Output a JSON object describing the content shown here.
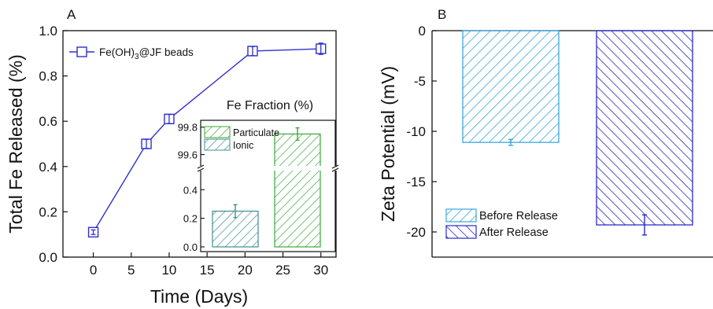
{
  "panels": {
    "a": {
      "letter": "A"
    },
    "b": {
      "letter": "B"
    }
  },
  "colors": {
    "line_blue": "#2f2fd0",
    "inset_teal": "#3f8f8f",
    "inset_green": "#3aa83a",
    "before_cyan": "#39a6dc",
    "after_blue": "#2a2ac8",
    "ink": "#111111"
  },
  "chart_data": [
    {
      "type": "line",
      "panel": "A",
      "xlabel": "Time (Days)",
      "ylabel": "Total Fe Released (%)",
      "xlim": [
        -4,
        32
      ],
      "ylim": [
        0,
        1.0
      ],
      "xticks": [
        "0",
        "5",
        "10",
        "15",
        "20",
        "25",
        "30"
      ],
      "yticks": [
        "0.0",
        "0.2",
        "0.4",
        "0.6",
        "0.8",
        "1.0"
      ],
      "series": [
        {
          "name_parts": [
            "Fe(OH)",
            "3",
            "@JF beads"
          ],
          "marker": "open-square",
          "color": "#2f2fd0",
          "x": [
            0,
            7,
            10,
            21,
            30
          ],
          "y": [
            0.11,
            0.5,
            0.61,
            0.91,
            0.92
          ],
          "yerr": [
            0.01,
            0.02,
            0.02,
            0.02,
            0.025
          ]
        }
      ],
      "legend": "top-left",
      "inset": {
        "type": "bar",
        "title": "Fe Fraction (%)",
        "yaxis_break": true,
        "lower_yticks": [
          "0.0",
          "0.2",
          "0.4"
        ],
        "upper_yticks": [
          "99.6",
          "99.8"
        ],
        "lower_ylim": [
          0,
          0.55
        ],
        "upper_ylim": [
          99.5,
          99.85
        ],
        "bars": [
          {
            "name": "Ionic",
            "value": 0.25,
            "err": 0.045,
            "color": "#3f8f8f"
          },
          {
            "name": "Particulate",
            "value": 99.75,
            "err": 0.045,
            "color": "#3aa83a"
          }
        ],
        "legend": "top-left"
      }
    },
    {
      "type": "bar",
      "panel": "B",
      "ylabel": "Zeta Potential (mV)",
      "ylim": [
        -22.5,
        0
      ],
      "yticks": [
        "0",
        "-5",
        "-10",
        "-15",
        "-20"
      ],
      "bars": [
        {
          "name": "Before Release",
          "value": -11.1,
          "err": 0.3,
          "color": "#39a6dc"
        },
        {
          "name": "After Release",
          "value": -19.3,
          "err": 1.0,
          "color": "#2a2ac8"
        }
      ],
      "legend": "bottom-left"
    }
  ]
}
